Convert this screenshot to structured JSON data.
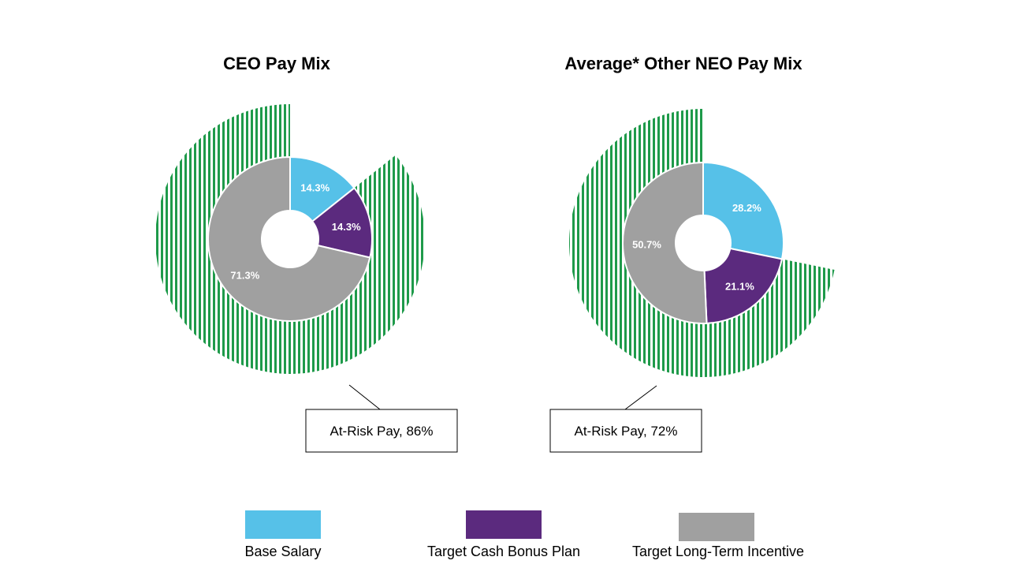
{
  "chart_data": [
    {
      "type": "pie",
      "title": "CEO Pay Mix",
      "categories": [
        "Base Salary",
        "Target Cash Bonus Plan",
        "Target Long-Term Incentive"
      ],
      "values": [
        14.3,
        14.3,
        71.3
      ],
      "value_labels": [
        "14.3%",
        "14.3%",
        "71.3%"
      ],
      "at_risk": {
        "label": "At-Risk Pay, 86%",
        "value": 86
      }
    },
    {
      "type": "pie",
      "title": "Average* Other NEO Pay Mix",
      "categories": [
        "Base Salary",
        "Target Cash Bonus Plan",
        "Target Long-Term Incentive"
      ],
      "values": [
        28.2,
        21.1,
        50.7
      ],
      "value_labels": [
        "28.2%",
        "21.1%",
        "50.7%"
      ],
      "at_risk": {
        "label": "At-Risk Pay, 72%",
        "value": 72
      }
    }
  ],
  "legend": [
    {
      "label": "Base Salary",
      "color": "#56C1E8"
    },
    {
      "label": "Target Cash Bonus Plan",
      "color": "#5B2A7E"
    },
    {
      "label": "Target Long-Term Incentive",
      "color": "#A0A0A0"
    }
  ],
  "colors": {
    "base_salary": "#56C1E8",
    "cash_bonus": "#5B2A7E",
    "long_term_incentive": "#A0A0A0",
    "at_risk_stripes": "#1E9A4A"
  }
}
